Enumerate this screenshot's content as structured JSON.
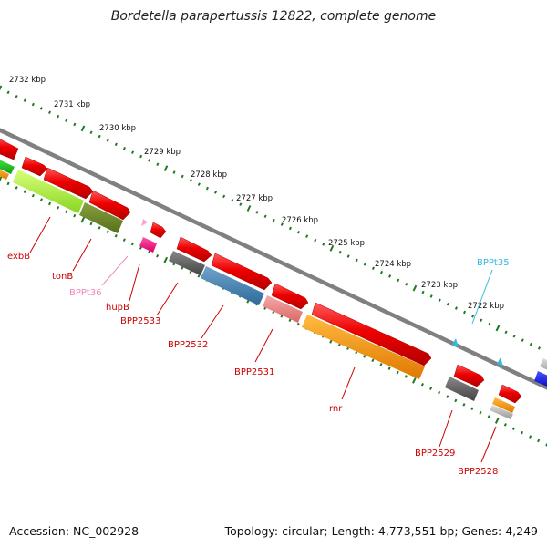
{
  "header": {
    "title": "Bordetella parapertussis 12822, complete genome"
  },
  "footer": {
    "accession": "Accession: NC_002928",
    "summary": "Topology: circular; Length: 4,773,551 bp; Genes: 4,249"
  },
  "scale": {
    "labels": [
      "2732 kbp",
      "2731 kbp",
      "2730 kbp",
      "2729 kbp",
      "2728 kbp",
      "2727 kbp",
      "2726 kbp",
      "2725 kbp",
      "2724 kbp",
      "2723 kbp",
      "2722 kbp"
    ]
  },
  "gene_labels": [
    {
      "text": "exbB",
      "color": "#cc0000"
    },
    {
      "text": "tonB",
      "color": "#cc0000"
    },
    {
      "text": "BPPt36",
      "color": "#ee88bb"
    },
    {
      "text": "hupB",
      "color": "#cc0000"
    },
    {
      "text": "BPP2533",
      "color": "#cc0000"
    },
    {
      "text": "BPP2532",
      "color": "#cc0000"
    },
    {
      "text": "BPP2531",
      "color": "#cc0000"
    },
    {
      "text": "rnr",
      "color": "#cc0000"
    },
    {
      "text": "BPP2529",
      "color": "#cc0000"
    },
    {
      "text": "BPP2528",
      "color": "#cc0000"
    },
    {
      "text": "BPPt35",
      "color": "#33bbdd"
    }
  ],
  "colors": {
    "cds": "#ee0000",
    "backbone": "#808080",
    "tick": "#1f7a1f",
    "label_red": "#cc0000",
    "label_pink": "#ee88bb",
    "label_cyan": "#33bbdd"
  }
}
